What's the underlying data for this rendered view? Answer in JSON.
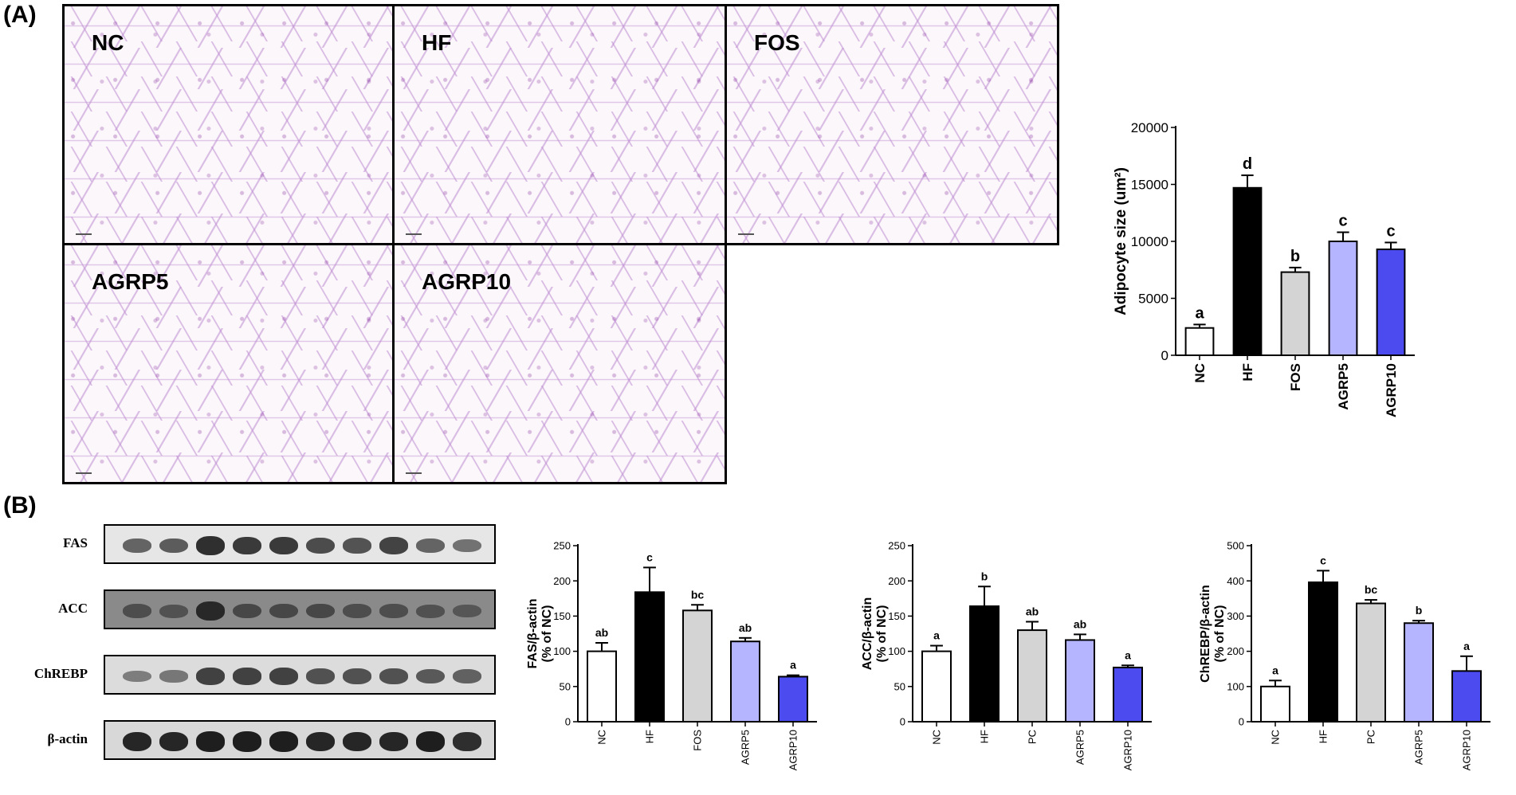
{
  "panels": {
    "a": "(A)",
    "b": "(B)"
  },
  "micrographs": [
    {
      "label": "NC"
    },
    {
      "label": "HF"
    },
    {
      "label": "FOS"
    },
    {
      "label": "AGRP5"
    },
    {
      "label": "AGRP10"
    }
  ],
  "blot": {
    "rows": [
      {
        "label": "FAS",
        "bg": "#e6e6e6",
        "intensity": [
          0.55,
          0.6,
          0.85,
          0.8,
          0.8,
          0.7,
          0.65,
          0.75,
          0.55,
          0.45
        ]
      },
      {
        "label": "ACC",
        "bg": "#8a8a8a",
        "intensity": [
          0.55,
          0.5,
          0.85,
          0.6,
          0.6,
          0.6,
          0.55,
          0.55,
          0.5,
          0.45
        ]
      },
      {
        "label": "ChREBP",
        "bg": "#dcdcdc",
        "intensity": [
          0.35,
          0.4,
          0.75,
          0.75,
          0.75,
          0.65,
          0.65,
          0.65,
          0.6,
          0.55
        ]
      },
      {
        "label": "β-actin",
        "bg": "#d8d8d8",
        "intensity": [
          0.9,
          0.9,
          0.95,
          0.95,
          0.95,
          0.9,
          0.9,
          0.9,
          0.95,
          0.85
        ]
      }
    ]
  },
  "chart_data": [
    {
      "type": "bar",
      "title": "",
      "xlabel": "",
      "ylabel": "Adipocyte size (um²)",
      "ylim": [
        0,
        20000
      ],
      "yticks": [
        0,
        5000,
        10000,
        15000,
        20000
      ],
      "categories": [
        "NC",
        "HF",
        "FOS",
        "AGRP5",
        "AGRP10"
      ],
      "values": [
        2400,
        14700,
        7300,
        10000,
        9300
      ],
      "errors": [
        300,
        1100,
        400,
        800,
        600
      ],
      "letters": [
        "a",
        "d",
        "b",
        "c",
        "c"
      ],
      "colors": [
        "#ffffff",
        "#000000",
        "#d4d4d4",
        "#b4b4ff",
        "#4b4bf0"
      ],
      "grid": false
    },
    {
      "type": "bar",
      "title": "",
      "xlabel": "",
      "ylabel": "FAS/β-actin",
      "ylabel2": "(% of NC)",
      "ylim": [
        0,
        250
      ],
      "yticks": [
        0,
        50,
        100,
        150,
        200,
        250
      ],
      "categories": [
        "NC",
        "HF",
        "FOS",
        "AGRP5",
        "AGRP10"
      ],
      "values": [
        100,
        184,
        158,
        114,
        64
      ],
      "errors": [
        12,
        35,
        8,
        5,
        2
      ],
      "letters": [
        "ab",
        "c",
        "bc",
        "ab",
        "a"
      ],
      "colors": [
        "#ffffff",
        "#000000",
        "#d4d4d4",
        "#b4b4ff",
        "#4b4bf0"
      ],
      "grid": false
    },
    {
      "type": "bar",
      "title": "",
      "xlabel": "",
      "ylabel": "ACC/β-actin",
      "ylabel2": "(% of NC)",
      "ylim": [
        0,
        250
      ],
      "yticks": [
        0,
        50,
        100,
        150,
        200,
        250
      ],
      "categories": [
        "NC",
        "HF",
        "PC",
        "AGRP5",
        "AGRP10"
      ],
      "values": [
        100,
        164,
        130,
        116,
        77
      ],
      "errors": [
        8,
        28,
        12,
        8,
        3
      ],
      "letters": [
        "a",
        "b",
        "ab",
        "ab",
        "a"
      ],
      "colors": [
        "#ffffff",
        "#000000",
        "#d4d4d4",
        "#b4b4ff",
        "#4b4bf0"
      ],
      "grid": false
    },
    {
      "type": "bar",
      "title": "",
      "xlabel": "",
      "ylabel": "ChREBP/β-actin",
      "ylabel2": "(% of NC)",
      "ylim": [
        0,
        500
      ],
      "yticks": [
        0,
        100,
        200,
        300,
        400,
        500
      ],
      "categories": [
        "NC",
        "HF",
        "PC",
        "AGRP5",
        "AGRP10"
      ],
      "values": [
        100,
        396,
        336,
        280,
        144
      ],
      "errors": [
        17,
        33,
        10,
        7,
        42
      ],
      "letters": [
        "a",
        "c",
        "bc",
        "b",
        "a"
      ],
      "colors": [
        "#ffffff",
        "#000000",
        "#d4d4d4",
        "#b4b4ff",
        "#4b4bf0"
      ],
      "grid": false
    }
  ]
}
